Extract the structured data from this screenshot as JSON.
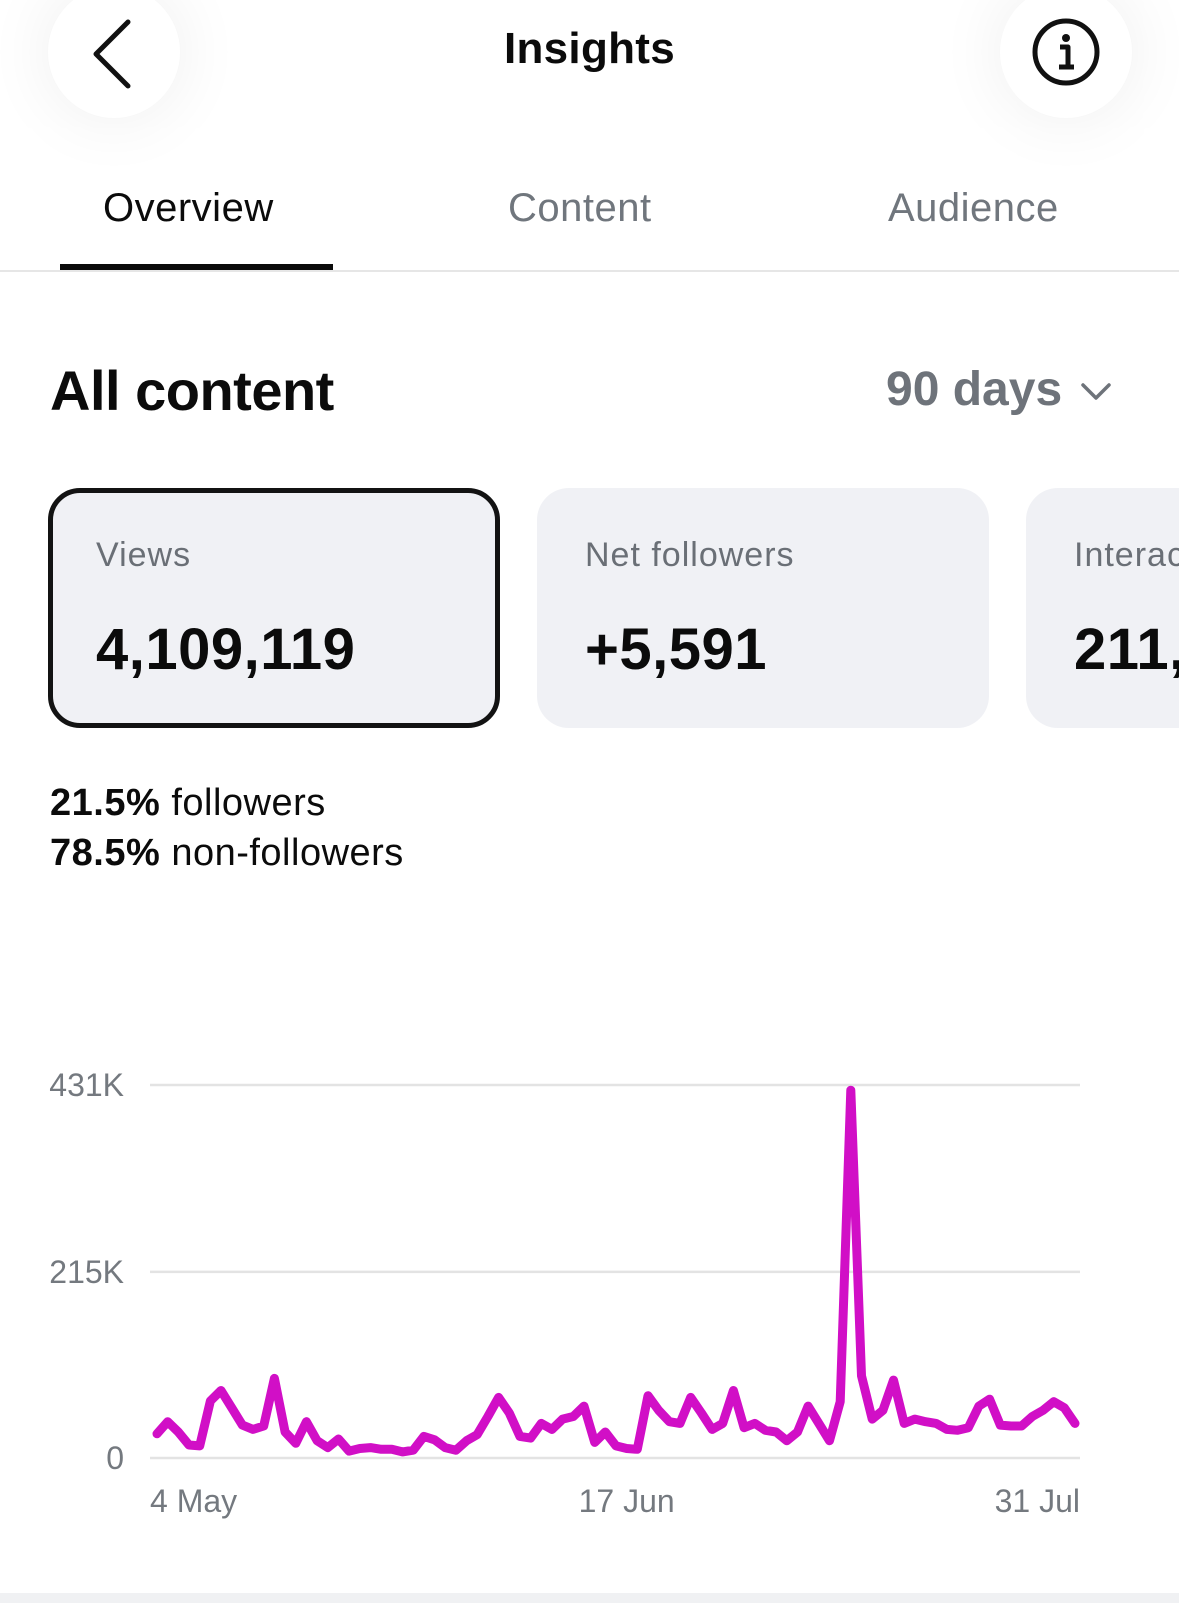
{
  "header": {
    "title": "Insights",
    "back_icon": "chevron-left-icon",
    "info_icon": "info-circle-icon"
  },
  "tabs": [
    {
      "label": "Overview",
      "active": true
    },
    {
      "label": "Content",
      "active": false
    },
    {
      "label": "Audience",
      "active": false
    }
  ],
  "section": {
    "title": "All content",
    "range": "90 days"
  },
  "cards": [
    {
      "label": "Views",
      "value": "4,109,119",
      "selected": true
    },
    {
      "label": "Net followers",
      "value": "+5,591",
      "selected": false
    },
    {
      "label": "Interactions",
      "value": "211,",
      "selected": false
    }
  ],
  "split": {
    "followers_pct": "21.5%",
    "followers_label": "followers",
    "non_followers_pct": "78.5%",
    "non_followers_label": "non-followers"
  },
  "colors": {
    "line": "#d10fc6",
    "grid": "#e3e3e3",
    "selected_border": "#131313",
    "card_bg": "#f0f1f5"
  },
  "chart_data": {
    "type": "line",
    "ytick_labels": [
      "431K",
      "215K",
      "0"
    ],
    "ytick_values": [
      431000,
      215000,
      0
    ],
    "ylim": [
      0,
      431000
    ],
    "xtick_labels": [
      "4 May",
      "17 Jun",
      "31 Jul"
    ],
    "xtick_index": [
      0,
      44,
      88
    ],
    "series": [
      {
        "values": [
          28000,
          42000,
          30000,
          15000,
          14000,
          66000,
          78000,
          58000,
          38000,
          33000,
          37000,
          92000,
          30000,
          17000,
          42000,
          20000,
          12000,
          22000,
          8000,
          11000,
          12000,
          10000,
          10000,
          7000,
          9000,
          25000,
          21000,
          12000,
          9000,
          20000,
          27000,
          48000,
          70000,
          52000,
          25000,
          23000,
          40000,
          33000,
          45000,
          48000,
          60000,
          18000,
          30000,
          14000,
          11000,
          10000,
          72000,
          55000,
          42000,
          40000,
          70000,
          52000,
          33000,
          40000,
          78000,
          35000,
          40000,
          32000,
          30000,
          20000,
          30000,
          60000,
          40000,
          20000,
          65000,
          425000,
          95000,
          45000,
          55000,
          90000,
          40000,
          45000,
          42000,
          40000,
          33000,
          32000,
          35000,
          60000,
          68000,
          38000,
          37000,
          37000,
          48000,
          55000,
          65000,
          58000,
          40000
        ]
      }
    ]
  }
}
